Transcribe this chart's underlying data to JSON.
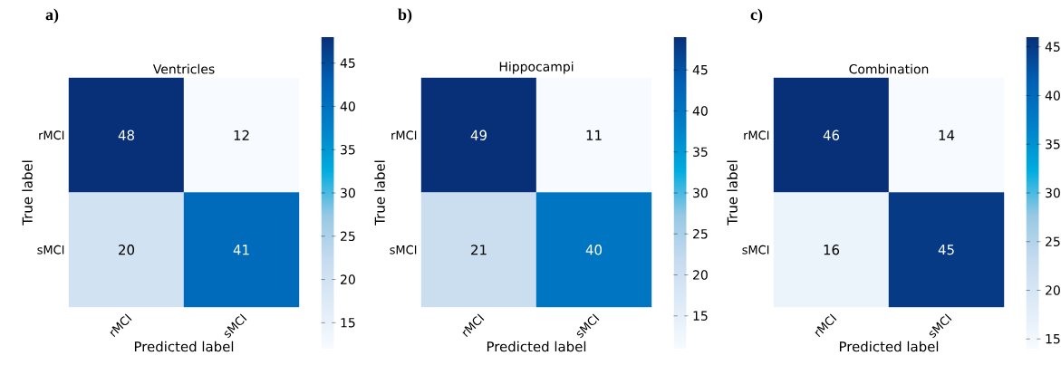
{
  "chart_data": [
    {
      "type": "heatmap",
      "title": "Ventricles",
      "annotations": [
        "a)"
      ],
      "xlabel": "Predicted label",
      "ylabel": "True label",
      "categories": [
        "rMCI",
        "sMCI"
      ],
      "y_categories": [
        "rMCI",
        "sMCI"
      ],
      "cells": [
        [
          48,
          12
        ],
        [
          20,
          41
        ]
      ],
      "data_labels": true,
      "clim": [
        12,
        48
      ],
      "cticks": [
        15,
        20,
        25,
        30,
        35,
        40,
        45
      ]
    },
    {
      "type": "heatmap",
      "title": "Hippocampi",
      "annotations": [
        "b)"
      ],
      "xlabel": "Predicted label",
      "ylabel": "True label",
      "categories": [
        "rMCI",
        "sMCI"
      ],
      "y_categories": [
        "rMCI",
        "sMCI"
      ],
      "cells": [
        [
          49,
          11
        ],
        [
          21,
          40
        ]
      ],
      "data_labels": true,
      "clim": [
        11,
        49
      ],
      "cticks": [
        15,
        20,
        25,
        30,
        35,
        40,
        45
      ]
    },
    {
      "type": "heatmap",
      "title": "Combination",
      "annotations": [
        "c)"
      ],
      "xlabel": "Predicted label",
      "ylabel": "True label",
      "categories": [
        "rMCI",
        "sMCI"
      ],
      "y_categories": [
        "rMCI",
        "sMCI"
      ],
      "cells": [
        [
          46,
          14
        ],
        [
          16,
          45
        ]
      ],
      "data_labels": true,
      "clim": [
        14,
        46
      ],
      "cticks": [
        15,
        20,
        25,
        30,
        35,
        40,
        45
      ]
    }
  ]
}
